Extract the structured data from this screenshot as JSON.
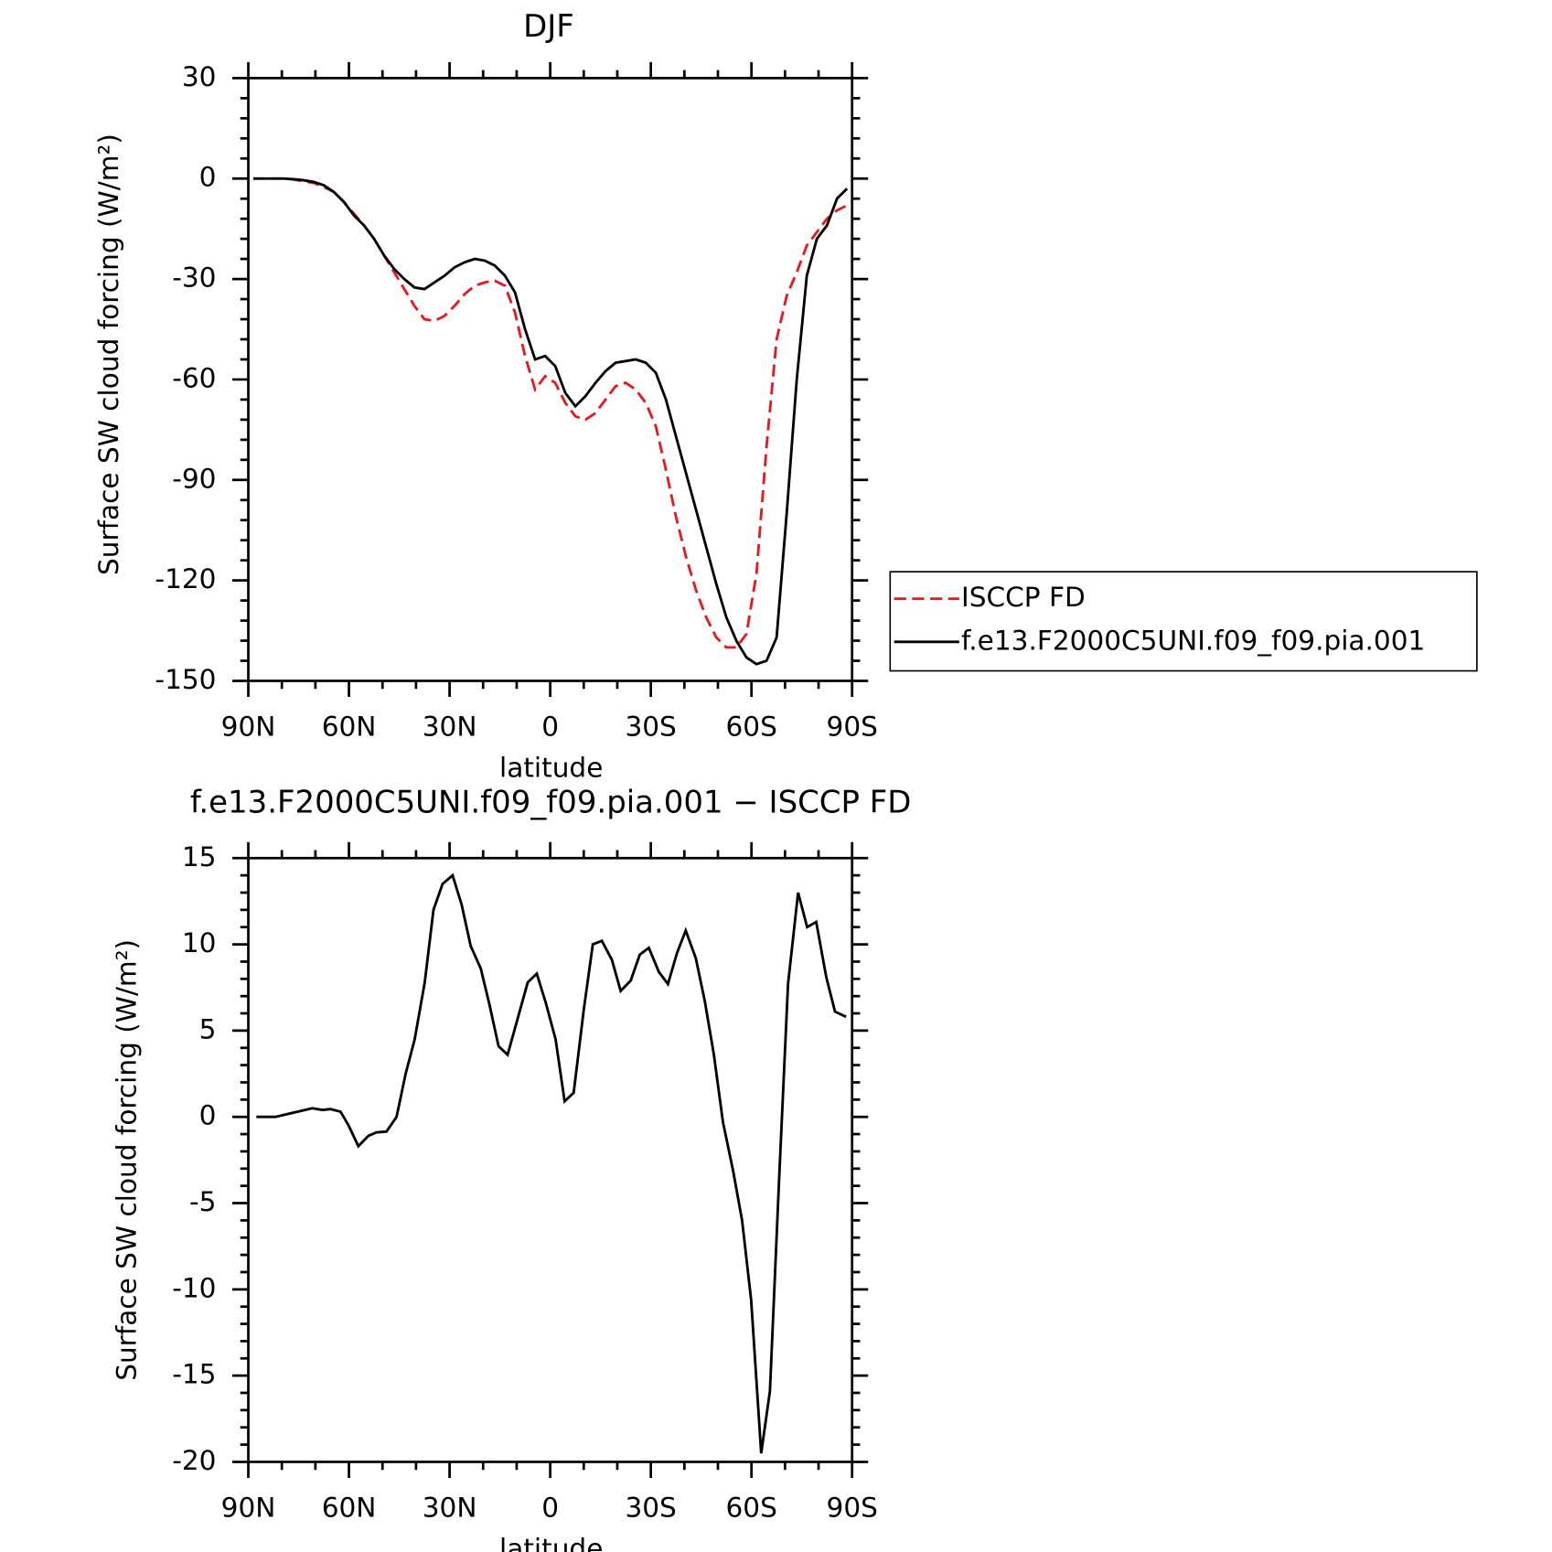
{
  "chart_data": [
    {
      "type": "line",
      "title": "DJF",
      "xlabel": "latitude",
      "ylabel": "Surface SW cloud forcing (W/m²)",
      "x": [
        88.5,
        85.5,
        82.5,
        79.5,
        76.5,
        73.5,
        70.5,
        67.5,
        64.5,
        61.5,
        58.5,
        55.5,
        52.5,
        49.5,
        46.5,
        43.5,
        40.5,
        37.5,
        34.5,
        31.5,
        28.5,
        25.5,
        22.5,
        19.5,
        16.5,
        13.5,
        10.5,
        7.5,
        4.5,
        1.5,
        -1.5,
        -4.5,
        -7.5,
        -10.5,
        -13.5,
        -16.5,
        -19.5,
        -22.5,
        -25.5,
        -28.5,
        -31.5,
        -34.5,
        -37.5,
        -40.5,
        -43.5,
        -46.5,
        -49.5,
        -52.5,
        -55.5,
        -58.5,
        -61.5,
        -64.5,
        -67.5,
        -70.5,
        -73.5,
        -76.5,
        -79.5,
        -82.5,
        -85.5,
        -88.5
      ],
      "series": [
        {
          "name": "ISCCP FD",
          "color": "#e8191e",
          "line_style": "dashed",
          "values": [
            0,
            0,
            0,
            0,
            -0.3,
            -0.8,
            -1.3,
            -2.5,
            -4,
            -7,
            -10.5,
            -14,
            -18,
            -23,
            -28,
            -33,
            -38,
            -42,
            -42.5,
            -41,
            -38,
            -34.5,
            -32,
            -31,
            -30.5,
            -32,
            -40,
            -53,
            -63,
            -59,
            -61,
            -67,
            -71,
            -72,
            -70,
            -66,
            -62,
            -61,
            -63,
            -67,
            -74,
            -87,
            -101,
            -113,
            -123,
            -131,
            -137,
            -140,
            -140,
            -136,
            -118,
            -80,
            -48,
            -35,
            -28,
            -20,
            -16,
            -12,
            -9.5,
            -8
          ]
        },
        {
          "name": "f.e13.F2000C5UNI.f09_f09.pia.001",
          "color": "#000000",
          "line_style": "solid",
          "values": [
            0,
            0,
            0,
            0,
            -0.2,
            -0.5,
            -1,
            -2,
            -4,
            -7,
            -11,
            -14,
            -18,
            -23,
            -27,
            -30,
            -32.5,
            -33,
            -31,
            -29,
            -26.5,
            -25,
            -24,
            -24.5,
            -26,
            -29,
            -34,
            -45,
            -54,
            -53,
            -56,
            -64,
            -68,
            -65,
            -61,
            -57.5,
            -55,
            -54.5,
            -54,
            -55,
            -58,
            -66,
            -77,
            -88,
            -99,
            -110,
            -121,
            -131,
            -138,
            -143,
            -145,
            -144,
            -137,
            -100,
            -60,
            -29,
            -18,
            -14,
            -6,
            -3
          ]
        }
      ],
      "xlim": [
        90,
        -90
      ],
      "xticks": [
        {
          "value": 90,
          "label": "90N"
        },
        {
          "value": 60,
          "label": "60N"
        },
        {
          "value": 30,
          "label": "30N"
        },
        0,
        {
          "value": -30,
          "label": "30S"
        },
        {
          "value": -60,
          "label": "60S"
        },
        {
          "value": -90,
          "label": "90S"
        }
      ],
      "xminorticks": [
        80,
        70,
        50,
        40,
        20,
        10,
        -10,
        -20,
        -40,
        -50,
        -70,
        -80
      ],
      "ylim": [
        -150,
        30
      ],
      "yticks": [
        30,
        0,
        -30,
        -60,
        -90,
        -120,
        -150
      ],
      "yminorticks": [
        24,
        18,
        12,
        6,
        -6,
        -12,
        -18,
        -24,
        -36,
        -42,
        -48,
        -54,
        -66,
        -72,
        -78,
        -84,
        -96,
        -102,
        -108,
        -114,
        -126,
        -132,
        -138,
        -144
      ],
      "legend": "right"
    },
    {
      "type": "line",
      "title": "f.e13.F2000C5UNI.f09_f09.pia.001 − ISCCP FD",
      "xlabel": "latitude",
      "ylabel": "Surface SW cloud forcing (W/m²)",
      "x": [
        87.6,
        81.9,
        77.5,
        70.9,
        67.9,
        65.5,
        62.5,
        60.1,
        57.2,
        54.2,
        51.8,
        48.8,
        45.8,
        43.1,
        40.4,
        37.4,
        34.8,
        32.1,
        29.1,
        26.4,
        23.7,
        20.7,
        18.1,
        15.4,
        12.7,
        9.7,
        6.7,
        4.0,
        1.3,
        -1.6,
        -4.3,
        -7.0,
        -10.0,
        -12.7,
        -15.4,
        -18.4,
        -21.0,
        -24.0,
        -26.7,
        -29.4,
        -32.4,
        -35.1,
        -37.8,
        -40.4,
        -43.4,
        -46.1,
        -48.8,
        -51.5,
        -54.5,
        -57.2,
        -59.9,
        -62.9,
        -65.5,
        -68.2,
        -70.9,
        -73.9,
        -76.6,
        -79.3,
        -82.3,
        -84.9,
        -88.2
      ],
      "series": [
        {
          "color": "#000000",
          "line_style": "solid",
          "values": [
            0,
            0,
            0.2,
            0.5,
            0.4,
            0.45,
            0.3,
            -0.5,
            -1.7,
            -1.1,
            -0.9,
            -0.85,
            0,
            2.5,
            4.5,
            7.8,
            12,
            13.5,
            14,
            12.3,
            9.9,
            8.6,
            6.5,
            4.1,
            3.6,
            5.7,
            7.8,
            8.3,
            6.6,
            4.5,
            0.9,
            1.4,
            6.2,
            10,
            10.2,
            9.1,
            7.3,
            7.9,
            9.4,
            9.8,
            8.4,
            7.7,
            9.5,
            10.8,
            9.2,
            6.7,
            3.6,
            -0.3,
            -3.1,
            -6,
            -10.6,
            -19.5,
            -15.9,
            -3.8,
            7.7,
            13,
            11,
            11.3,
            8.1,
            6.1,
            5.8
          ]
        }
      ],
      "xlim": [
        90,
        -90
      ],
      "xticks": [
        {
          "value": 90,
          "label": "90N"
        },
        {
          "value": 60,
          "label": "60N"
        },
        {
          "value": 30,
          "label": "30N"
        },
        0,
        {
          "value": -30,
          "label": "30S"
        },
        {
          "value": -60,
          "label": "60S"
        },
        {
          "value": -90,
          "label": "90S"
        }
      ],
      "xminorticks": [
        80,
        70,
        50,
        40,
        20,
        10,
        -10,
        -20,
        -40,
        -50,
        -70,
        -80
      ],
      "ylim": [
        -20,
        15
      ],
      "yticks": [
        15,
        10,
        5,
        0,
        -5,
        -10,
        -15,
        -20
      ],
      "yminorticks": [
        14,
        13,
        12,
        11,
        9,
        8,
        7,
        6,
        4,
        3,
        2,
        1,
        -1,
        -2,
        -3,
        -4,
        -6,
        -7,
        -8,
        -9,
        -11,
        -12,
        -13,
        -14,
        -16,
        -17,
        -18,
        -19
      ]
    }
  ]
}
